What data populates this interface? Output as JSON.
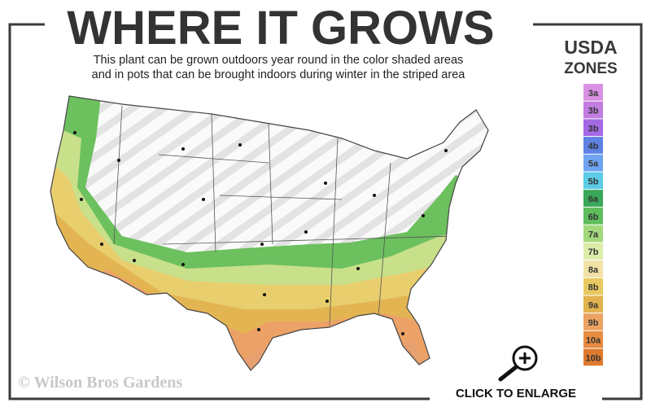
{
  "header": {
    "title": "WHERE IT GROWS",
    "subtitle_lines": [
      "This plant can be grown outdoors year round in the color shaded areas",
      "and in pots that can be brought indoors during winter in the striped area"
    ]
  },
  "legend": {
    "title_lines": [
      "USDA",
      "ZONES"
    ],
    "zones": [
      {
        "label": "3a",
        "color": "#d991e3"
      },
      {
        "label": "3b",
        "color": "#c17ddf"
      },
      {
        "label": "3b",
        "color": "#a46ae6"
      },
      {
        "label": "4b",
        "color": "#5e82e4"
      },
      {
        "label": "5a",
        "color": "#6ea4f2"
      },
      {
        "label": "5b",
        "color": "#5ccbe6"
      },
      {
        "label": "6a",
        "color": "#3aa85a"
      },
      {
        "label": "6b",
        "color": "#5fbd5c"
      },
      {
        "label": "7a",
        "color": "#a3d87c"
      },
      {
        "label": "7b",
        "color": "#dcedaa"
      },
      {
        "label": "8a",
        "color": "#f2e2a6"
      },
      {
        "label": "8b",
        "color": "#e9ca62"
      },
      {
        "label": "9a",
        "color": "#e2b24f"
      },
      {
        "label": "9b",
        "color": "#eda262"
      },
      {
        "label": "10a",
        "color": "#e88c42"
      },
      {
        "label": "10b",
        "color": "#df7a2e"
      }
    ]
  },
  "copyright": "© Wilson Bros Gardens",
  "action": "CLICK TO ENLARGE"
}
